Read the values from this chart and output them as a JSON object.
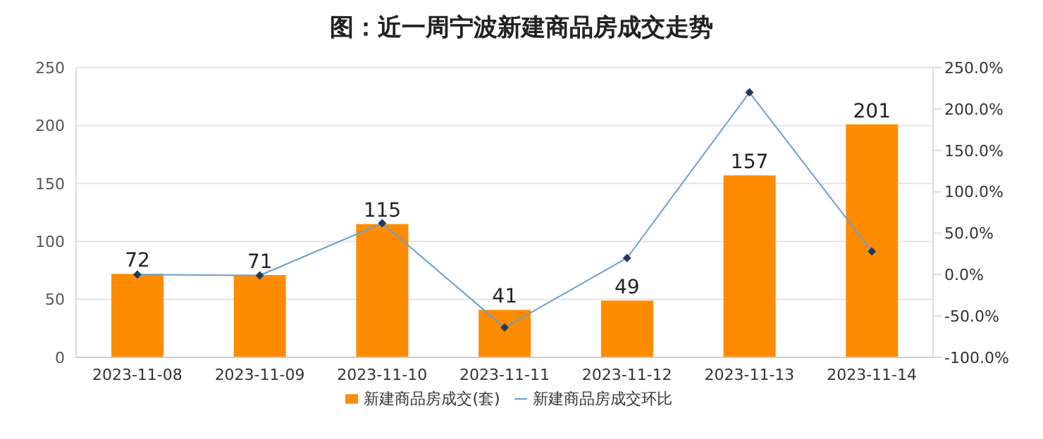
{
  "chart_data": {
    "type": "bar",
    "title": "图：近一周宁波新建商品房成交走势",
    "categories": [
      "2023-11-08",
      "2023-11-09",
      "2023-11-10",
      "2023-11-11",
      "2023-11-12",
      "2023-11-13",
      "2023-11-14"
    ],
    "series": [
      {
        "name": "新建商品房成交(套)",
        "color": "#ff8c00",
        "values": [
          72,
          71,
          115,
          41,
          49,
          157,
          201
        ],
        "data_labels": true
      },
      {
        "name": "新建商品房成交环比",
        "type": "line",
        "axis": "y2",
        "color": "#6a9fd0",
        "values": [
          0,
          -1,
          62,
          -64,
          20,
          220,
          28
        ],
        "marker": "diamond"
      }
    ],
    "ylim": [
      0,
      250
    ],
    "yticks": [
      0,
      50,
      100,
      150,
      200,
      250
    ],
    "y2lim": [
      -100,
      250
    ],
    "y2ticks": [
      {
        "value": -100,
        "label": "-100.0%"
      },
      {
        "value": -50,
        "label": "-50.0%"
      },
      {
        "value": 0,
        "label": "0.0%"
      },
      {
        "value": 50,
        "label": "50.0%"
      },
      {
        "value": 100,
        "label": "100.0%"
      },
      {
        "value": 150,
        "label": "150.0%"
      },
      {
        "value": 200,
        "label": "200.0%"
      },
      {
        "value": 250,
        "label": "250.0%"
      }
    ],
    "grid": "y",
    "legend": "bottom"
  }
}
